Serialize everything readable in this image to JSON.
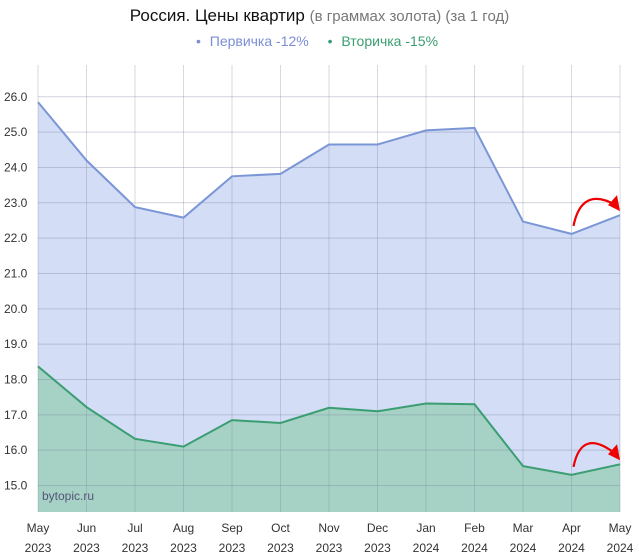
{
  "chart_data": {
    "type": "area",
    "title": "Россия. Цены квартир",
    "subtitle": "(в граммах золота) (за 1 год)",
    "categories": [
      [
        "May",
        "2023"
      ],
      [
        "Jun",
        "2023"
      ],
      [
        "Jul",
        "2023"
      ],
      [
        "Aug",
        "2023"
      ],
      [
        "Sep",
        "2023"
      ],
      [
        "Oct",
        "2023"
      ],
      [
        "Nov",
        "2023"
      ],
      [
        "Dec",
        "2023"
      ],
      [
        "Jan",
        "2024"
      ],
      [
        "Feb",
        "2024"
      ],
      [
        "Mar",
        "2024"
      ],
      [
        "Apr",
        "2024"
      ],
      [
        "May",
        "2024"
      ]
    ],
    "series": [
      {
        "name": "Первичка -12%",
        "color": "#7b96d6",
        "fill": "#d3ddf5",
        "values": [
          25.85,
          24.2,
          22.88,
          22.58,
          23.75,
          23.82,
          24.65,
          24.65,
          25.05,
          25.12,
          22.47,
          22.12,
          22.65
        ]
      },
      {
        "name": "Вторичка -15%",
        "color": "#3a9e72",
        "fill": "#a6d1c5",
        "values": [
          18.37,
          17.22,
          16.32,
          16.1,
          16.85,
          16.77,
          17.2,
          17.1,
          17.32,
          17.3,
          15.55,
          15.3,
          15.6
        ]
      }
    ],
    "yticks": [
      "15.0",
      "16.0",
      "17.0",
      "18.0",
      "19.0",
      "20.0",
      "21.0",
      "22.0",
      "23.0",
      "24.0",
      "25.0",
      "26.0"
    ],
    "ylim": [
      14.25,
      26.9
    ],
    "grid": true,
    "legend_position": "top-center",
    "annotations": [
      "red curved arrow Apr→May 2024 on both series"
    ],
    "watermark": "bytopic.ru"
  }
}
